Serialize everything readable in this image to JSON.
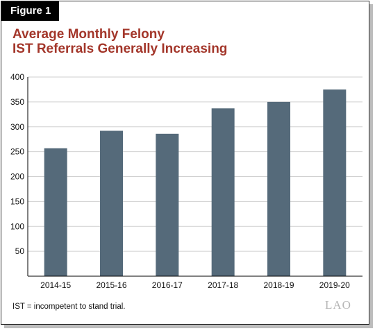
{
  "figure": {
    "label": "Figure 1",
    "title_line1": "Average Monthly Felony",
    "title_line2": "IST Referrals Generally Increasing",
    "footnote": "IST = incompetent to stand trial.",
    "logo_text": "LAO"
  },
  "chart_data": {
    "type": "bar",
    "title": "Average Monthly Felony IST Referrals Generally Increasing",
    "xlabel": "",
    "ylabel": "",
    "categories": [
      "2014-15",
      "2015-16",
      "2016-17",
      "2017-18",
      "2018-19",
      "2019-20"
    ],
    "values": [
      257,
      292,
      286,
      337,
      350,
      375
    ],
    "ylim": [
      0,
      400
    ],
    "yticks": [
      50,
      100,
      150,
      200,
      250,
      300,
      350,
      400
    ],
    "grid": true,
    "bar_color": "#556a7a",
    "grid_color": "#cfcfcf"
  }
}
